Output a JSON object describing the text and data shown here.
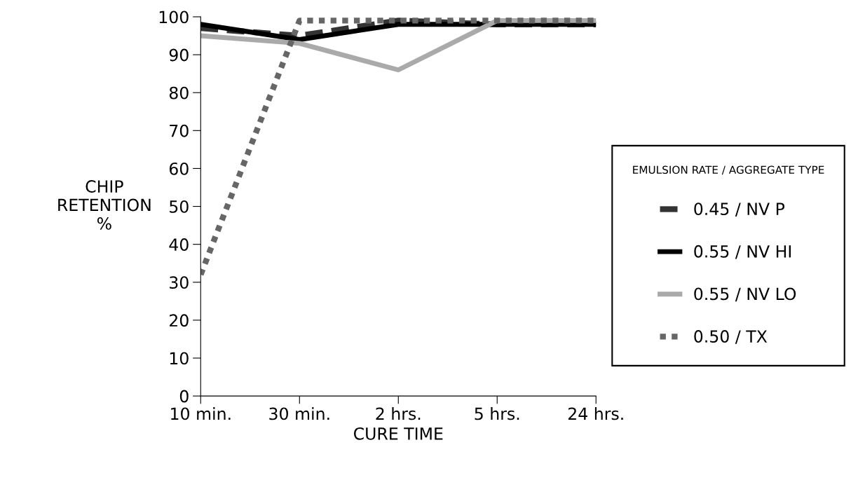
{
  "chart_data": {
    "type": "line",
    "xlabel": "CURE TIME",
    "ylabel": "CHIP\nRETENTION\n%",
    "legend_title": "EMULSION RATE / AGGREGATE TYPE",
    "categories": [
      "10 min.",
      "30 min.",
      "2 hrs.",
      "5 hrs.",
      "24 hrs."
    ],
    "series": [
      {
        "name": "0.45 / NV P",
        "color": "#333333",
        "line_style": "dashed",
        "values": [
          97,
          95,
          99,
          98,
          98
        ]
      },
      {
        "name": "0.55 / NV HI",
        "color": "#000000",
        "line_style": "solid",
        "values": [
          98,
          94,
          98,
          98,
          98
        ]
      },
      {
        "name": "0.55 / NV LO",
        "color": "#aaaaaa",
        "line_style": "solid",
        "values": [
          95,
          93,
          86,
          99,
          99
        ]
      },
      {
        "name": "0.50 / TX",
        "color": "#666666",
        "line_style": "dotted",
        "values": [
          32,
          99,
          99,
          99,
          99
        ]
      }
    ],
    "ylim": [
      0,
      100
    ],
    "yticks": [
      0,
      10,
      20,
      30,
      40,
      50,
      60,
      70,
      80,
      90,
      100
    ],
    "grid": false,
    "legend": "right",
    "marker": "none"
  }
}
